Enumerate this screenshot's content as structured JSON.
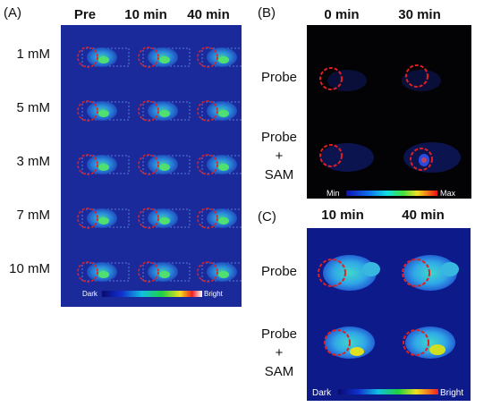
{
  "panel_a": {
    "label": "(A)",
    "columns": [
      "Pre",
      "10 min",
      "40 min"
    ],
    "rows": [
      "1 mM",
      "5 mM",
      "3 mM",
      "7 mM",
      "10 mM"
    ],
    "scale_min": "Dark",
    "scale_max": "Bright"
  },
  "panel_b": {
    "label": "(B)",
    "columns": [
      "0 min",
      "30 min"
    ],
    "row1": "Probe",
    "row2_line1": "Probe",
    "row2_line2": "+",
    "row2_line3": "SAM",
    "scale_min": "Min",
    "scale_max": "Max"
  },
  "panel_c": {
    "label": "(C)",
    "columns": [
      "10 min",
      "40 min"
    ],
    "row1": "Probe",
    "row2_line1": "Probe",
    "row2_line2": "+",
    "row2_line3": "SAM",
    "scale_min": "Dark",
    "scale_max": "Bright"
  },
  "colors": {
    "panel_a_bg": "#1b2a9a",
    "panel_b_bg": "#030305",
    "panel_c_bg": "#0c1a8a",
    "roi_circle": "#e02020"
  }
}
